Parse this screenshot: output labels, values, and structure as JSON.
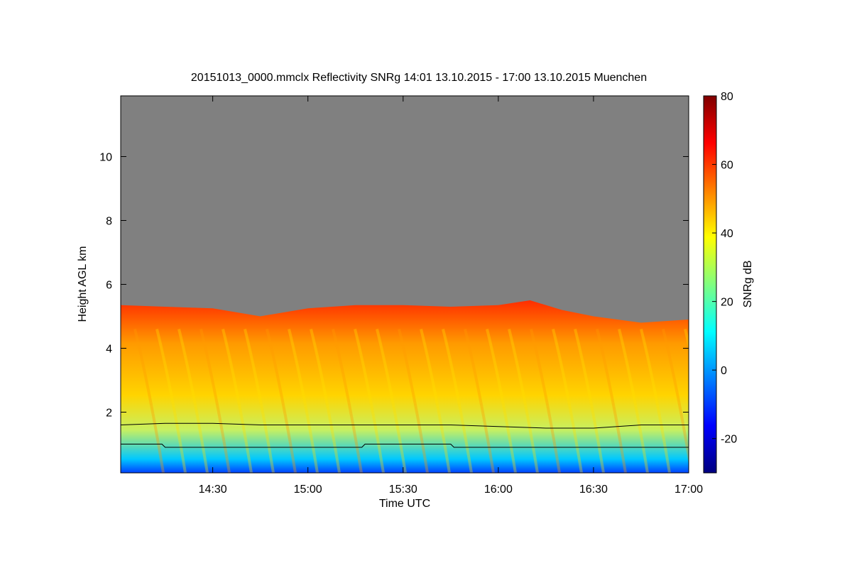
{
  "chart_data": {
    "type": "heatmap",
    "title": "20151013_0000.mmclx Reflectivity SNRg   14:01 13.10.2015 - 17:00 13.10.2015 Muenchen",
    "xlabel": "Time UTC",
    "ylabel": "Height AGL km",
    "x_ticks": [
      "14:30",
      "15:00",
      "15:30",
      "16:00",
      "16:30",
      "17:00"
    ],
    "xlim": [
      "14:01",
      "17:00"
    ],
    "y_ticks": [
      2,
      4,
      6,
      8,
      10
    ],
    "ylim": [
      0.1,
      11.9
    ],
    "colorbar": {
      "label": "SNRg dB",
      "ticks": [
        -20,
        0,
        20,
        40,
        60,
        80
      ],
      "range": [
        -30,
        80
      ],
      "colors": [
        "#00007f",
        "#0000ff",
        "#0080ff",
        "#00ffff",
        "#80ff80",
        "#ffff00",
        "#ff8000",
        "#ff0000",
        "#7f0000"
      ]
    },
    "no_signal_color": "#808080",
    "echo_top_km": [
      {
        "t": "14:01",
        "h": 5.35
      },
      {
        "t": "14:15",
        "h": 5.3
      },
      {
        "t": "14:30",
        "h": 5.25
      },
      {
        "t": "14:45",
        "h": 5.0
      },
      {
        "t": "15:00",
        "h": 5.25
      },
      {
        "t": "15:15",
        "h": 5.35
      },
      {
        "t": "15:30",
        "h": 5.35
      },
      {
        "t": "15:45",
        "h": 5.3
      },
      {
        "t": "16:00",
        "h": 5.35
      },
      {
        "t": "16:10",
        "h": 5.5
      },
      {
        "t": "16:20",
        "h": 5.2
      },
      {
        "t": "16:30",
        "h": 5.0
      },
      {
        "t": "16:45",
        "h": 4.8
      },
      {
        "t": "17:00",
        "h": 4.9
      }
    ],
    "series": [
      {
        "values": [
          {
            "t": "14:01",
            "h": 1.6
          },
          {
            "t": "14:15",
            "h": 1.65
          },
          {
            "t": "14:30",
            "h": 1.65
          },
          {
            "t": "14:45",
            "h": 1.6
          },
          {
            "t": "15:00",
            "h": 1.6
          },
          {
            "t": "15:15",
            "h": 1.6
          },
          {
            "t": "15:30",
            "h": 1.6
          },
          {
            "t": "15:45",
            "h": 1.6
          },
          {
            "t": "16:00",
            "h": 1.55
          },
          {
            "t": "16:15",
            "h": 1.5
          },
          {
            "t": "16:30",
            "h": 1.5
          },
          {
            "t": "16:45",
            "h": 1.6
          },
          {
            "t": "17:00",
            "h": 1.6
          }
        ]
      },
      {
        "values": [
          {
            "t": "14:01",
            "h": 1.0
          },
          {
            "t": "14:14",
            "h": 1.0
          },
          {
            "t": "14:15",
            "h": 0.9
          },
          {
            "t": "15:17",
            "h": 0.9
          },
          {
            "t": "15:18",
            "h": 1.0
          },
          {
            "t": "15:45",
            "h": 1.0
          },
          {
            "t": "15:46",
            "h": 0.9
          },
          {
            "t": "17:00",
            "h": 0.9
          }
        ]
      }
    ]
  }
}
